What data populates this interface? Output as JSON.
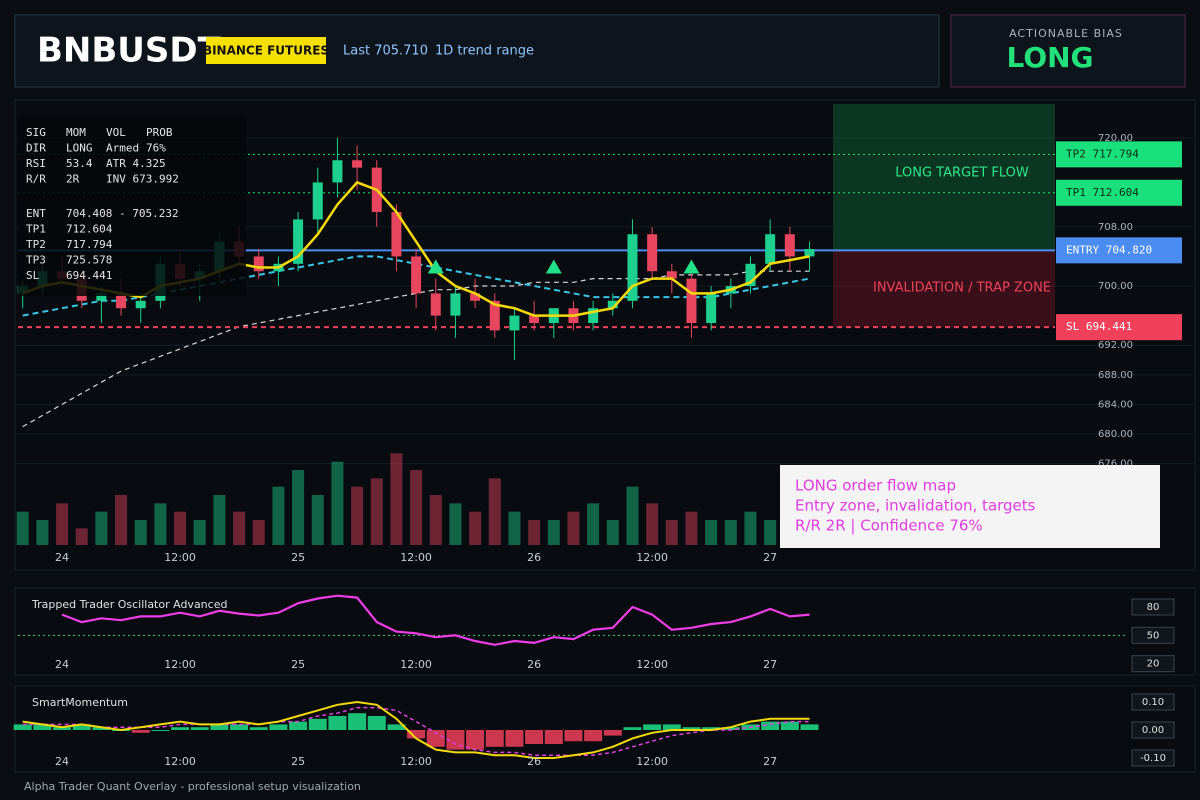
{
  "header": {
    "title": "BNBUSDT",
    "badge": "BINANCE FUTURES",
    "last": "Last 705.710",
    "range": "1D trend range"
  },
  "bias": {
    "label": "ACTIONABLE BIAS",
    "value": "LONG"
  },
  "stats": [
    [
      "SIG",
      "MOM",
      "VOL",
      "PROB"
    ],
    [
      "DIR",
      "LONG",
      "Armed",
      "76%"
    ],
    [
      "RSI",
      "53.4",
      "ATR 4.325"
    ],
    [
      "R/R",
      "2R",
      "INV 673.992"
    ],
    [
      "ENT",
      "704.408 - 705.232"
    ],
    [
      "TP1",
      "712.604"
    ],
    [
      "TP2",
      "717.794"
    ],
    [
      "TP3",
      "725.578"
    ],
    [
      "SL",
      "694.441"
    ]
  ],
  "annotation": [
    "LONG order flow map",
    "Entry zone, invalidation, targets",
    "R/R 2R | Confidence 76%"
  ],
  "footer": "Alpha Trader Quant Overlay - professional setup visualization",
  "chart_data": [
    {
      "type": "candlestick",
      "categories": [
        null,
        null,
        "24",
        null,
        null,
        null,
        null,
        null,
        "12:00",
        null,
        null,
        null,
        null,
        null,
        "25",
        null,
        null,
        null,
        null,
        null,
        "12:00",
        null,
        null,
        null,
        null,
        null,
        "26",
        null,
        null,
        null,
        null,
        null,
        "12:00",
        null,
        null,
        null,
        null,
        null,
        "27",
        null,
        null
      ],
      "open": [
        699,
        700,
        702,
        701,
        698,
        699,
        697,
        698,
        703,
        701,
        702,
        706,
        704,
        702,
        703,
        709,
        714,
        717,
        716,
        710,
        704,
        699,
        696,
        699,
        698,
        694,
        696,
        695,
        697,
        695,
        697,
        698,
        707,
        702,
        701,
        695,
        699,
        700,
        703,
        707,
        704
      ],
      "high": [
        701,
        703,
        704,
        702,
        700,
        701,
        699,
        704,
        705,
        703,
        707,
        708,
        705,
        704,
        710,
        716,
        720,
        719,
        717,
        711,
        705,
        701,
        700,
        701,
        699,
        697,
        698,
        697,
        698,
        698,
        699,
        709,
        708,
        703,
        702,
        700,
        701,
        704,
        709,
        708,
        706
      ],
      "low": [
        697,
        699,
        700,
        697,
        695,
        696,
        695,
        697,
        700,
        698,
        701,
        703,
        701,
        700,
        702,
        707,
        712,
        713,
        708,
        702,
        697,
        694,
        693,
        697,
        693,
        690,
        694,
        693,
        694,
        694,
        696,
        697,
        701,
        699,
        693,
        694,
        697,
        699,
        702,
        702,
        702
      ],
      "close": [
        700,
        702,
        701,
        698,
        699,
        697,
        698,
        703,
        701,
        702,
        706,
        704,
        702,
        703,
        709,
        714,
        717,
        716,
        710,
        704,
        699,
        696,
        699,
        698,
        694,
        696,
        695,
        697,
        695,
        697,
        698,
        707,
        702,
        701,
        695,
        699,
        700,
        703,
        707,
        704,
        705
      ],
      "volume": [
        4,
        3,
        5,
        2,
        4,
        6,
        3,
        5,
        4,
        3,
        6,
        4,
        3,
        7,
        9,
        6,
        10,
        7,
        8,
        11,
        9,
        6,
        5,
        4,
        8,
        4,
        3,
        3,
        4,
        5,
        3,
        7,
        5,
        3,
        4,
        3,
        3,
        4,
        3,
        4,
        3
      ],
      "ema": [
        699,
        700,
        700.5,
        700,
        699.5,
        699,
        698.5,
        700,
        700.5,
        701,
        702,
        703,
        702.5,
        702.5,
        704,
        707,
        711,
        714,
        713,
        710,
        706,
        702,
        700,
        699,
        697.5,
        697,
        696,
        696,
        696,
        696.5,
        697,
        700,
        701,
        701,
        699,
        699,
        699.5,
        700.5,
        703,
        703.5,
        704
      ],
      "basis": [
        696,
        696.5,
        697,
        697.5,
        698,
        698,
        698.5,
        699,
        699.5,
        700,
        700.5,
        701,
        701.5,
        702,
        702.5,
        703,
        703.5,
        704,
        704,
        703.5,
        703,
        702.5,
        702,
        701.5,
        701,
        700.5,
        700,
        699.5,
        699,
        698.5,
        698.5,
        698.5,
        698.5,
        698.5,
        698.5,
        698.5,
        699,
        699.5,
        700,
        700.5,
        701
      ],
      "trend": [
        681,
        682.5,
        684,
        685.5,
        687,
        688.5,
        689.5,
        690.5,
        691.5,
        692.5,
        693.5,
        694.5,
        695,
        695.5,
        696,
        696.5,
        697,
        697.5,
        698,
        698.5,
        699,
        699.5,
        699.5,
        700,
        700,
        700,
        700.5,
        700.5,
        700.5,
        701,
        701,
        701,
        701,
        701.5,
        701.5,
        701.5,
        701.5,
        702,
        702,
        702,
        702
      ],
      "buy_signals": [
        null,
        null,
        null,
        null,
        null,
        null,
        null,
        null,
        null,
        null,
        null,
        null,
        null,
        null,
        null,
        null,
        null,
        null,
        null,
        null,
        null,
        702.5,
        null,
        null,
        null,
        null,
        null,
        702.5,
        null,
        null,
        null,
        null,
        null,
        null,
        702.5,
        null,
        null,
        null,
        null,
        null,
        null
      ],
      "up_color": "#1ed08e",
      "down_color": "#e8455e",
      "ema_color": "#f5d90a",
      "basis_color": "#39c6e6",
      "trend_color": "#d8d8d8",
      "ylim": [
        665,
        724.6
      ],
      "yticks": [
        {
          "value": 720,
          "label": "720.00"
        },
        {
          "value": 708,
          "label": "708.00"
        },
        {
          "value": 700,
          "label": "700.00"
        },
        {
          "value": 692,
          "label": "692.00"
        },
        {
          "value": 688,
          "label": "688.00"
        },
        {
          "value": 684,
          "label": "684.00"
        },
        {
          "value": 680,
          "label": "680.00"
        },
        {
          "value": 676,
          "label": "676.00"
        }
      ],
      "volume_ylim": [
        0,
        12
      ],
      "levels": [
        {
          "value": 717.794,
          "label": "TP2 717.794",
          "color": "#19e07a"
        },
        {
          "value": 712.604,
          "label": "TP1 712.604",
          "color": "#19e07a"
        },
        {
          "value": 704.82,
          "label": "ENTRY 704.820",
          "color": "#4a8cf0"
        },
        {
          "value": 694.441,
          "label": "SL 694.441",
          "color": "#f0405a"
        }
      ],
      "target_zone": "LONG TARGET FLOW",
      "invalidation_zone": "INVALIDATION / TRAP ZONE",
      "grid": true
    },
    {
      "type": "line",
      "title": "Trapped Trader Oscillator Advanced",
      "categories": [
        null,
        null,
        "24",
        null,
        null,
        null,
        null,
        null,
        "12:00",
        null,
        null,
        null,
        null,
        null,
        "25",
        null,
        null,
        null,
        null,
        null,
        "12:00",
        null,
        null,
        null,
        null,
        null,
        "26",
        null,
        null,
        null,
        null,
        null,
        "12:00",
        null,
        null,
        null,
        null,
        null,
        "27",
        null,
        null
      ],
      "values": [
        null,
        null,
        72,
        64,
        68,
        66,
        70,
        70,
        74,
        70,
        76,
        73,
        71,
        74,
        84,
        89,
        92,
        90,
        64,
        54,
        52,
        48,
        50,
        44,
        40,
        44,
        42,
        48,
        46,
        56,
        58,
        80,
        72,
        56,
        58,
        62,
        64,
        70,
        78,
        70,
        72
      ],
      "color": "#f03ce6",
      "ylim": [
        8,
        98
      ],
      "yticks": [
        80,
        50,
        20
      ],
      "midline": 50
    },
    {
      "type": "histogram_line",
      "title": "SmartMomentum",
      "categories": [
        null,
        null,
        "24",
        null,
        null,
        null,
        null,
        null,
        "12:00",
        null,
        null,
        null,
        null,
        null,
        "25",
        null,
        null,
        null,
        null,
        null,
        "12:00",
        null,
        null,
        null,
        null,
        null,
        "26",
        null,
        null,
        null,
        null,
        null,
        "12:00",
        null,
        null,
        null,
        null,
        null,
        "27",
        null,
        null
      ],
      "values": [
        0.02,
        0.02,
        0.01,
        0.02,
        0.01,
        0,
        -0.01,
        0,
        0.01,
        0.01,
        0.02,
        0.02,
        0.01,
        0.02,
        0.03,
        0.04,
        0.05,
        0.06,
        0.05,
        0.02,
        -0.03,
        -0.06,
        -0.07,
        -0.07,
        -0.06,
        -0.06,
        -0.05,
        -0.05,
        -0.04,
        -0.04,
        -0.02,
        0.01,
        0.02,
        0.02,
        0.01,
        0.01,
        0.01,
        0.02,
        0.03,
        0.03,
        0.02
      ],
      "line_values": [
        0.03,
        0.02,
        0.01,
        0.02,
        0.01,
        0,
        0.01,
        0.02,
        0.03,
        0.02,
        0.02,
        0.03,
        0.02,
        0.03,
        0.05,
        0.07,
        0.09,
        0.1,
        0.09,
        0.04,
        -0.03,
        -0.07,
        -0.08,
        -0.08,
        -0.09,
        -0.09,
        -0.1,
        -0.1,
        -0.09,
        -0.08,
        -0.06,
        -0.03,
        -0.01,
        0,
        0,
        0,
        0.01,
        0.03,
        0.04,
        0.04,
        0.04
      ],
      "signal_values": [
        0.02,
        0.02,
        0.02,
        0.02,
        0.01,
        0.01,
        0.01,
        0.01,
        0.02,
        0.02,
        0.02,
        0.02,
        0.02,
        0.03,
        0.03,
        0.05,
        0.06,
        0.08,
        0.08,
        0.07,
        0.03,
        -0.01,
        -0.05,
        -0.07,
        -0.08,
        -0.08,
        -0.09,
        -0.09,
        -0.09,
        -0.09,
        -0.08,
        -0.06,
        -0.04,
        -0.02,
        -0.01,
        0,
        0,
        0.01,
        0.02,
        0.03,
        0.03
      ],
      "up_color": "#1ee08a",
      "down_color": "#f0405a",
      "line_color": "#f5d90a",
      "signal_color": "#e040e0",
      "ylim": [
        -0.15,
        0.15
      ],
      "yticks": [
        {
          "value": 0.1,
          "label": "0.10"
        },
        {
          "value": 0,
          "label": "0.00"
        },
        {
          "value": -0.1,
          "label": "-0.10"
        }
      ]
    }
  ]
}
